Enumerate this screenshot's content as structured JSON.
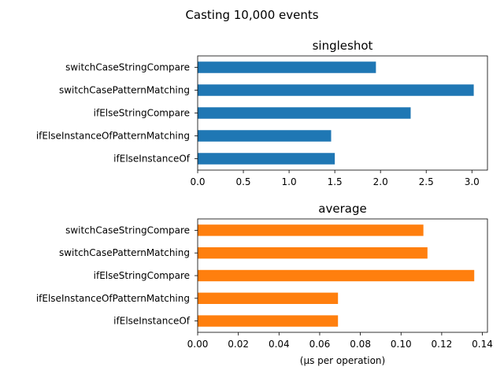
{
  "suptitle": "Casting 10,000 events",
  "chart_data": [
    {
      "type": "bar",
      "orientation": "horizontal",
      "title": "singleshot",
      "categories": [
        "switchCaseStringCompare",
        "switchCasePatternMatching",
        "ifElseStringCompare",
        "ifElseInstanceOfPatternMatching",
        "ifElseInstanceOf"
      ],
      "values": [
        1.95,
        3.02,
        2.33,
        1.46,
        1.5
      ],
      "xlim": [
        0,
        3.17
      ],
      "xticks": [
        "0.0",
        "0.5",
        "1.0",
        "1.5",
        "2.0",
        "2.5",
        "3.0"
      ],
      "xtick_values": [
        0,
        0.5,
        1.0,
        1.5,
        2.0,
        2.5,
        3.0
      ],
      "xlabel": "",
      "color": "#1f77b4",
      "grid": false,
      "legend": "none"
    },
    {
      "type": "bar",
      "orientation": "horizontal",
      "title": "average",
      "categories": [
        "switchCaseStringCompare",
        "switchCasePatternMatching",
        "ifElseStringCompare",
        "ifElseInstanceOfPatternMatching",
        "ifElseInstanceOf"
      ],
      "values": [
        0.111,
        0.113,
        0.136,
        0.069,
        0.069
      ],
      "xlim": [
        0,
        0.1425
      ],
      "xticks": [
        "0.00",
        "0.02",
        "0.04",
        "0.06",
        "0.08",
        "0.10",
        "0.12",
        "0.14"
      ],
      "xtick_values": [
        0,
        0.02,
        0.04,
        0.06,
        0.08,
        0.1,
        0.12,
        0.14
      ],
      "xlabel": "(μs per operation)",
      "color": "#ff7f0e",
      "grid": false,
      "legend": "none"
    }
  ]
}
